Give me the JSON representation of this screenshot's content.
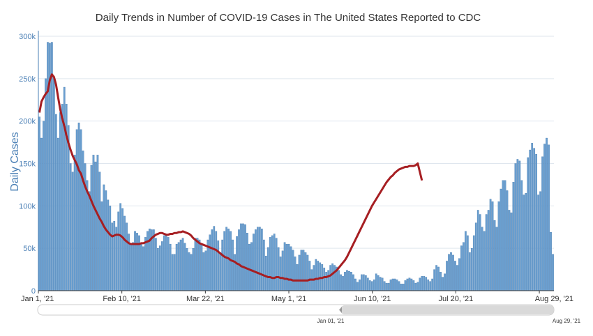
{
  "chart_data": {
    "type": "bar",
    "title": "Daily Trends in Number of COVID-19 Cases in The United States Reported to CDC",
    "xlabel": "",
    "ylabel": "Daily Cases",
    "x_start": "2021-01-01",
    "x_ticks": [
      "Jan 1, '21",
      "Feb 10, '21",
      "Mar 22, '21",
      "May 1, '21",
      "Jun 10, '21",
      "Jul 20, '21",
      "Aug 29, '21"
    ],
    "y_ticks": [
      "0",
      "50k",
      "100k",
      "150k",
      "200k",
      "250k",
      "300k"
    ],
    "ylim": [
      0,
      300000
    ],
    "grid": true,
    "navigator": {
      "start_label": "Jan 01, '21",
      "end_label": "Aug 29, '21"
    },
    "colors": {
      "bars": "#6a9fd0",
      "bar_edge": "#3a6fa5",
      "average_line": "#a61e22",
      "grid": "#dfe6ee",
      "axis": "#4a7fb5"
    },
    "series": [
      {
        "type": "bar",
        "values": [
          205000,
          180000,
          200000,
          250000,
          293000,
          292000,
          293000,
          250000,
          208000,
          180000,
          210000,
          220000,
          240000,
          220000,
          195000,
          150000,
          140000,
          160000,
          190000,
          198000,
          190000,
          165000,
          150000,
          130000,
          117000,
          148000,
          160000,
          152000,
          160000,
          140000,
          105000,
          125000,
          118000,
          107000,
          100000,
          80000,
          82000,
          75000,
          93000,
          103000,
          97000,
          88000,
          80000,
          67000,
          55000,
          57000,
          70000,
          68000,
          65000,
          55000,
          52000,
          63000,
          70000,
          73000,
          72000,
          72000,
          62000,
          50000,
          53000,
          58000,
          65000,
          65000,
          63000,
          55000,
          43000,
          43000,
          55000,
          57000,
          60000,
          62000,
          56000,
          50000,
          45000,
          43000,
          50000,
          62000,
          62000,
          60000,
          55000,
          45000,
          47000,
          60000,
          66000,
          72000,
          76000,
          70000,
          59000,
          45000,
          60000,
          70000,
          75000,
          73000,
          70000,
          60000,
          43000,
          64000,
          72000,
          79000,
          79000,
          78000,
          68000,
          55000,
          57000,
          67000,
          72000,
          75000,
          75000,
          73000,
          60000,
          41000,
          51000,
          63000,
          65000,
          67000,
          62000,
          51000,
          40000,
          47000,
          57000,
          55000,
          55000,
          52000,
          48000,
          40000,
          31000,
          42000,
          48000,
          48000,
          45000,
          42000,
          35000,
          25000,
          30000,
          37000,
          35000,
          33000,
          31000,
          27000,
          22000,
          24000,
          30000,
          32000,
          30000,
          28000,
          24000,
          19000,
          17000,
          22000,
          24000,
          23000,
          22000,
          19000,
          14000,
          10000,
          13000,
          19000,
          19000,
          18000,
          15000,
          12000,
          11000,
          13000,
          20000,
          18000,
          16000,
          15000,
          11000,
          9000,
          9000,
          13000,
          14000,
          14000,
          13000,
          11000,
          8000,
          8000,
          12000,
          14000,
          15000,
          14000,
          12000,
          9000,
          10000,
          15000,
          17000,
          17000,
          16000,
          13000,
          11000,
          14000,
          25000,
          30000,
          28000,
          22000,
          16000,
          20000,
          35000,
          43000,
          45000,
          42000,
          35000,
          30000,
          38000,
          53000,
          57000,
          70000,
          65000,
          45000,
          50000,
          65000,
          80000,
          95000,
          90000,
          75000,
          70000,
          90000,
          95000,
          108000,
          105000,
          83000,
          75000,
          105000,
          120000,
          130000,
          130000,
          118000,
          95000,
          92000,
          128000,
          150000,
          155000,
          153000,
          130000,
          113000,
          115000,
          157000,
          166000,
          174000,
          168000,
          161000,
          113000,
          117000,
          158000,
          173000,
          180000,
          172000,
          69000,
          43000
        ]
      },
      {
        "type": "line",
        "values": [
          210000,
          223000,
          228000,
          232000,
          235000,
          248000,
          255000,
          252000,
          243000,
          228000,
          214000,
          203000,
          194000,
          183000,
          174000,
          166000,
          159000,
          154000,
          149000,
          142000,
          138000,
          130000,
          123000,
          117000,
          112000,
          106000,
          100000,
          95000,
          90000,
          85000,
          81000,
          76000,
          72000,
          69000,
          66000,
          64000,
          65000,
          66000,
          66000,
          65000,
          63000,
          60000,
          58000,
          56000,
          55000,
          55000,
          55000,
          55000,
          55000,
          56000,
          56000,
          57000,
          58000,
          59000,
          62000,
          64000,
          66000,
          67000,
          68000,
          68000,
          67000,
          66000,
          66000,
          67000,
          67000,
          68000,
          68000,
          69000,
          69000,
          70000,
          69000,
          68000,
          67000,
          65000,
          62000,
          60000,
          58000,
          56000,
          55000,
          54000,
          53000,
          52000,
          51000,
          50000,
          49000,
          48000,
          46000,
          44000,
          42000,
          40000,
          39000,
          38000,
          36000,
          35000,
          34000,
          32000,
          31000,
          29000,
          28000,
          27000,
          26000,
          25000,
          24000,
          23000,
          22000,
          21000,
          20000,
          19000,
          18000,
          17000,
          16000,
          16000,
          15000,
          15000,
          16000,
          16000,
          15000,
          15000,
          14000,
          14000,
          13000,
          13000,
          12000,
          12000,
          12000,
          12000,
          12000,
          12000,
          12000,
          12000,
          13000,
          13000,
          13000,
          14000,
          14000,
          15000,
          15000,
          16000,
          16000,
          17000,
          18000,
          20000,
          22000,
          24000,
          27000,
          30000,
          33000,
          36000,
          40000,
          45000,
          50000,
          55000,
          60000,
          65000,
          70000,
          75000,
          80000,
          85000,
          90000,
          95000,
          100000,
          104000,
          108000,
          112000,
          116000,
          120000,
          124000,
          128000,
          131000,
          134000,
          136000,
          139000,
          141000,
          143000,
          144000,
          145000,
          146000,
          146000,
          147000,
          147000,
          147000,
          148000,
          150000,
          140000,
          130000
        ]
      }
    ]
  }
}
